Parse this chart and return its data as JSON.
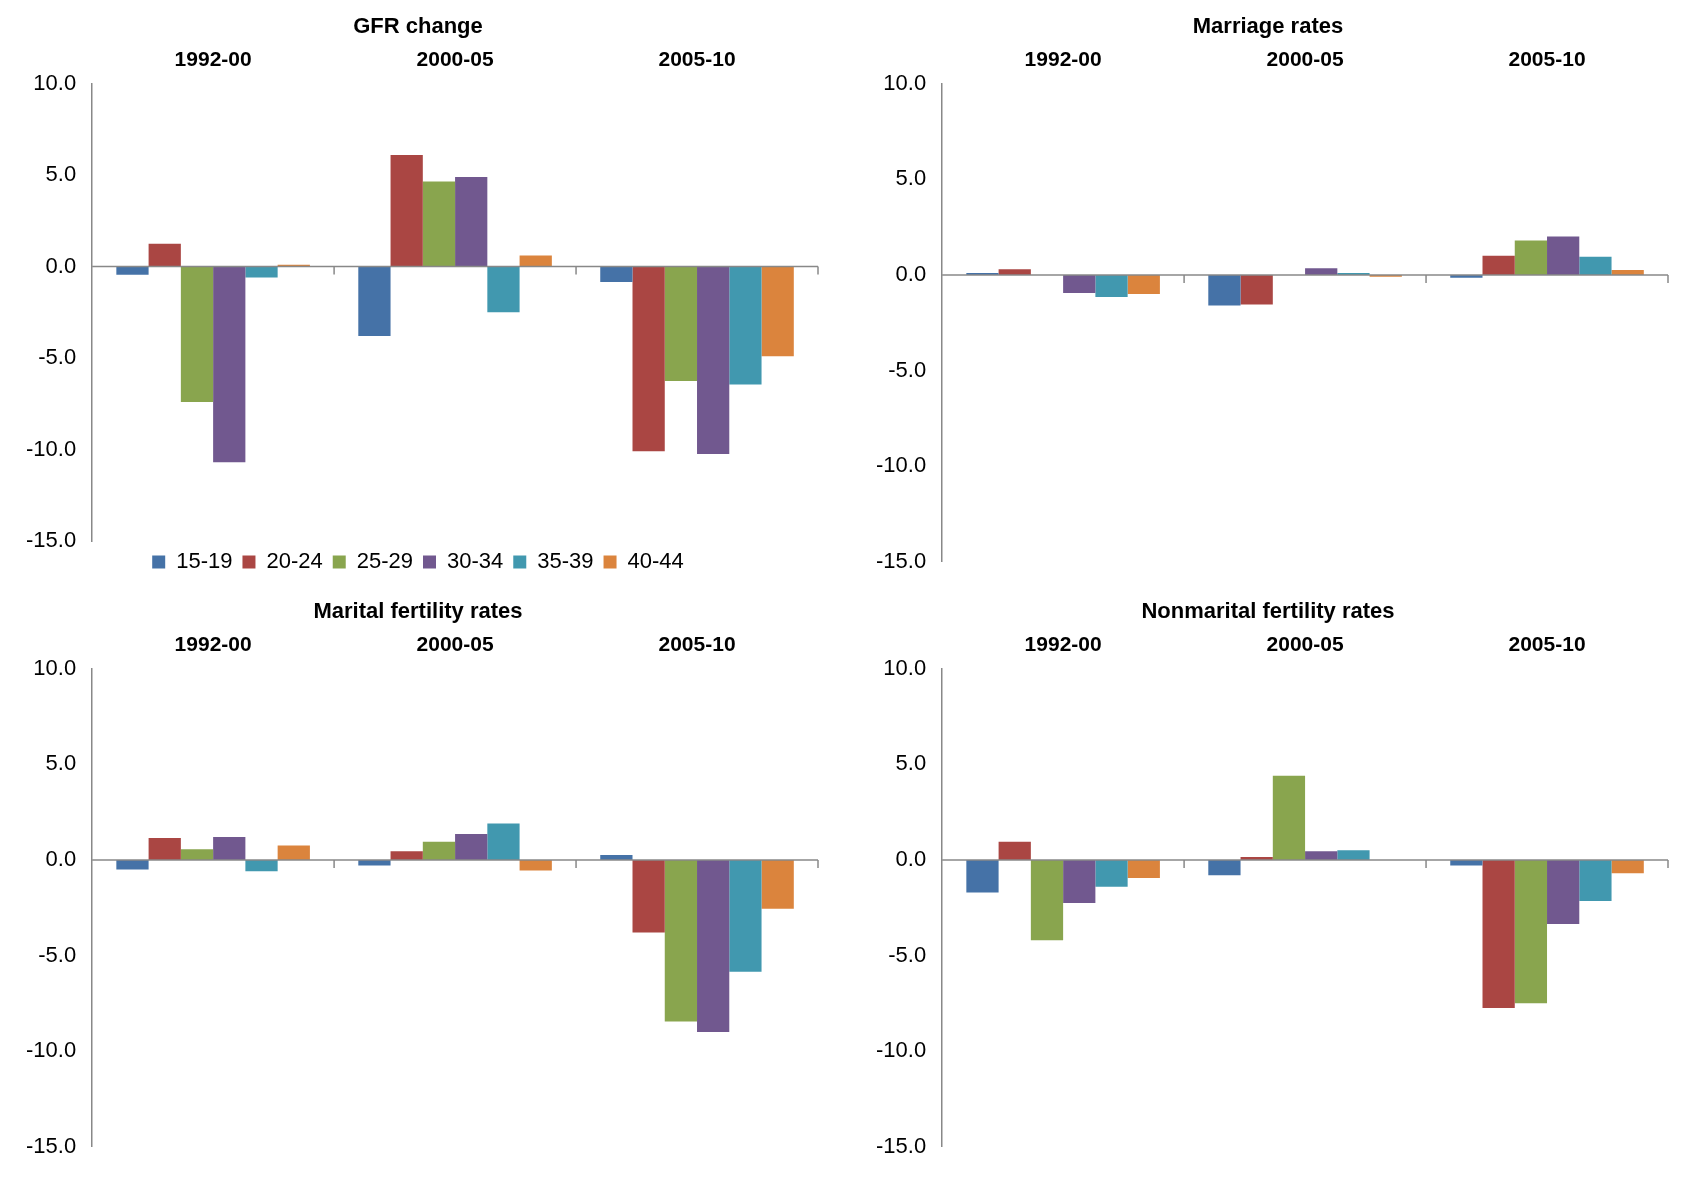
{
  "chart_data": [
    {
      "type": "bar",
      "title": "GFR change",
      "categories": [
        "1992-00",
        "2000-05",
        "2005-10"
      ],
      "ylim": [
        -15,
        10
      ],
      "yticks": [
        {
          "value": -15,
          "label": "-15.0"
        },
        {
          "value": -10,
          "label": "-10.0"
        },
        {
          "value": -5,
          "label": "-5.0"
        },
        {
          "value": 0,
          "label": "0.0"
        },
        {
          "value": 5,
          "label": "5.0"
        },
        {
          "value": 10,
          "label": "10.0"
        }
      ],
      "legend": "bottom",
      "series": [
        {
          "name": "15-19",
          "color": "#4572a7",
          "values": [
            -0.45,
            -3.8,
            -0.85
          ]
        },
        {
          "name": "20-24",
          "color": "#aa4643",
          "values": [
            1.25,
            6.1,
            -10.1
          ]
        },
        {
          "name": "25-29",
          "color": "#89a54e",
          "values": [
            -7.4,
            4.65,
            -6.25
          ]
        },
        {
          "name": "30-34",
          "color": "#71588f",
          "values": [
            -10.7,
            4.9,
            -10.25
          ]
        },
        {
          "name": "35-39",
          "color": "#4198af",
          "values": [
            -0.6,
            -2.5,
            -6.45
          ]
        },
        {
          "name": "40-44",
          "color": "#db843d",
          "values": [
            0.1,
            0.6,
            -4.9
          ]
        }
      ]
    },
    {
      "type": "bar",
      "title": "Marriage rates",
      "categories": [
        "1992-00",
        "2000-05",
        "2005-10"
      ],
      "ylim": [
        -15,
        10
      ],
      "yticks": [
        {
          "value": -15,
          "label": "-15.0"
        },
        {
          "value": -10,
          "label": "-10.0"
        },
        {
          "value": -5,
          "label": "-5.0"
        },
        {
          "value": 0,
          "label": "0.0"
        },
        {
          "value": 5,
          "label": "5.0"
        },
        {
          "value": 10,
          "label": "10.0"
        }
      ],
      "series": [
        {
          "color": "#4572a7",
          "values": [
            0.1,
            -1.6,
            -0.15
          ]
        },
        {
          "color": "#aa4643",
          "values": [
            0.3,
            -1.55,
            1.0
          ]
        },
        {
          "color": "#89a54e",
          "values": [
            0,
            0,
            1.8
          ]
        },
        {
          "color": "#71588f",
          "values": [
            -0.95,
            0.35,
            2.0
          ]
        },
        {
          "color": "#4198af",
          "values": [
            -1.15,
            0.1,
            0.95
          ]
        },
        {
          "color": "#db843d",
          "values": [
            -1.0,
            -0.1,
            0.25
          ]
        }
      ]
    },
    {
      "type": "bar",
      "title": "Marital fertility rates",
      "categories": [
        "1992-00",
        "2000-05",
        "2005-10"
      ],
      "ylim": [
        -15,
        10
      ],
      "yticks": [
        {
          "value": -15,
          "label": "-15.0"
        },
        {
          "value": -10,
          "label": "-10.0"
        },
        {
          "value": -5,
          "label": "-5.0"
        },
        {
          "value": 0,
          "label": "0.0"
        },
        {
          "value": 5,
          "label": "5.0"
        },
        {
          "value": 10,
          "label": "10.0"
        }
      ],
      "series": [
        {
          "color": "#4572a7",
          "values": [
            -0.5,
            -0.3,
            0.25
          ]
        },
        {
          "color": "#aa4643",
          "values": [
            1.15,
            0.45,
            -3.8
          ]
        },
        {
          "color": "#89a54e",
          "values": [
            0.55,
            0.95,
            -8.45
          ]
        },
        {
          "color": "#71588f",
          "values": [
            1.2,
            1.35,
            -9.0
          ]
        },
        {
          "color": "#4198af",
          "values": [
            -0.6,
            1.9,
            -5.85
          ]
        },
        {
          "color": "#db843d",
          "values": [
            0.75,
            -0.55,
            -2.55
          ]
        }
      ]
    },
    {
      "type": "bar",
      "title": "Nonmarital fertility rates",
      "categories": [
        "1992-00",
        "2000-05",
        "2005-10"
      ],
      "ylim": [
        -15,
        10
      ],
      "yticks": [
        {
          "value": -15,
          "label": "-15.0"
        },
        {
          "value": -10,
          "label": "-10.0"
        },
        {
          "value": -5,
          "label": "-5.0"
        },
        {
          "value": 0,
          "label": "0.0"
        },
        {
          "value": 5,
          "label": "5.0"
        },
        {
          "value": 10,
          "label": "10.0"
        }
      ],
      "series": [
        {
          "color": "#4572a7",
          "values": [
            -1.7,
            -0.8,
            -0.3
          ]
        },
        {
          "color": "#aa4643",
          "values": [
            0.95,
            0.15,
            -7.75
          ]
        },
        {
          "color": "#89a54e",
          "values": [
            -4.2,
            4.4,
            -7.5
          ]
        },
        {
          "color": "#71588f",
          "values": [
            -2.25,
            0.45,
            -3.35
          ]
        },
        {
          "color": "#4198af",
          "values": [
            -1.4,
            0.5,
            -2.15
          ]
        },
        {
          "color": "#db843d",
          "values": [
            -0.95,
            0,
            -0.7
          ]
        }
      ]
    }
  ]
}
